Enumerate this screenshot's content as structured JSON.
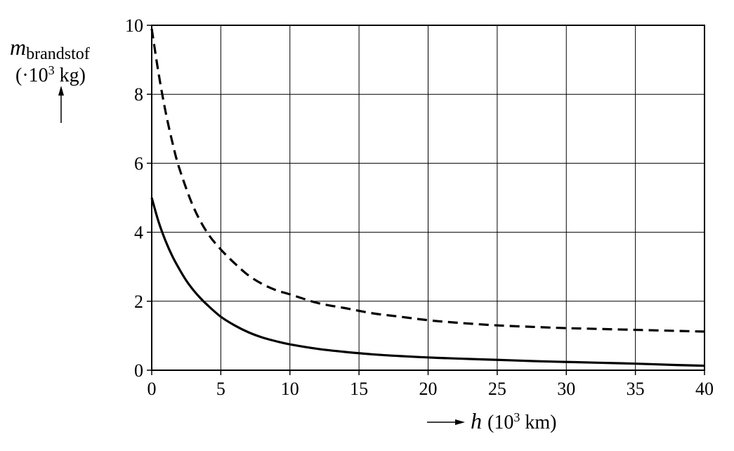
{
  "chart_data": {
    "type": "line",
    "title": "",
    "ylabel": {
      "symbol": "m",
      "subscript": "brandstof",
      "unit_prefix": "(·10",
      "unit_exp": "3",
      "unit_suffix": " kg)"
    },
    "xlabel": {
      "symbol": "h",
      "unit_prefix": "(10",
      "unit_exp": "3",
      "unit_suffix": " km)"
    },
    "xlim": [
      0,
      40
    ],
    "ylim": [
      0,
      10
    ],
    "x_ticks": [
      "0",
      "5",
      "10",
      "15",
      "20",
      "25",
      "30",
      "35",
      "40"
    ],
    "y_ticks": [
      "0",
      "2",
      "4",
      "6",
      "8",
      "10"
    ],
    "grid": true,
    "series": [
      {
        "style": "solid",
        "color": "#000000",
        "x": [
          0,
          0.5,
          1,
          1.5,
          2,
          2.5,
          3,
          3.5,
          4,
          5,
          6,
          7,
          8,
          9,
          10,
          12,
          14,
          16,
          18,
          20,
          22,
          25,
          28,
          30,
          32,
          35,
          38,
          40
        ],
        "y": [
          5.0,
          4.3,
          3.75,
          3.3,
          2.93,
          2.6,
          2.33,
          2.1,
          1.9,
          1.55,
          1.3,
          1.1,
          0.95,
          0.84,
          0.75,
          0.62,
          0.53,
          0.46,
          0.41,
          0.37,
          0.34,
          0.3,
          0.26,
          0.24,
          0.22,
          0.19,
          0.15,
          0.13
        ]
      },
      {
        "style": "dashed",
        "color": "#000000",
        "x": [
          0,
          0.5,
          1,
          1.5,
          2,
          3,
          4,
          5,
          6,
          7,
          8,
          9,
          10,
          12,
          14,
          16,
          18,
          20,
          22,
          25,
          28,
          30,
          32,
          35,
          38,
          40
        ],
        "y": [
          9.9,
          8.6,
          7.5,
          6.6,
          5.85,
          4.75,
          4.0,
          3.5,
          3.1,
          2.75,
          2.5,
          2.32,
          2.2,
          1.95,
          1.8,
          1.65,
          1.55,
          1.45,
          1.38,
          1.3,
          1.25,
          1.22,
          1.2,
          1.17,
          1.14,
          1.12
        ]
      }
    ]
  }
}
